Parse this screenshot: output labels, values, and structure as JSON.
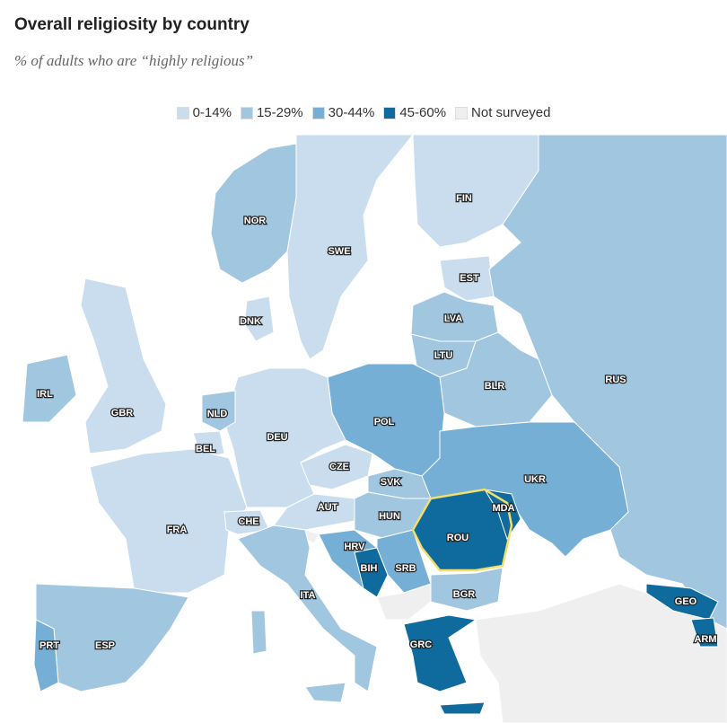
{
  "title": "Overall religiosity by country",
  "subtitle": "% of adults who are “highly religious”",
  "legend": [
    {
      "label": "0-14%",
      "color": "#c9ddee"
    },
    {
      "label": "15-29%",
      "color": "#a0c6e0"
    },
    {
      "label": "30-44%",
      "color": "#75afd5"
    },
    {
      "label": "45-60%",
      "color": "#0f6b9e"
    },
    {
      "label": "Not surveyed",
      "color": "#efefef"
    }
  ],
  "countries": [
    {
      "code": "NOR",
      "class": 1
    },
    {
      "code": "SWE",
      "class": 0
    },
    {
      "code": "FIN",
      "class": 0
    },
    {
      "code": "EST",
      "class": 0
    },
    {
      "code": "LVA",
      "class": 1
    },
    {
      "code": "LTU",
      "class": 1
    },
    {
      "code": "BLR",
      "class": 1
    },
    {
      "code": "RUS",
      "class": 1
    },
    {
      "code": "POL",
      "class": 2
    },
    {
      "code": "UKR",
      "class": 2
    },
    {
      "code": "DEU",
      "class": 0
    },
    {
      "code": "DNK",
      "class": 0
    },
    {
      "code": "NLD",
      "class": 1
    },
    {
      "code": "BEL",
      "class": 0
    },
    {
      "code": "GBR",
      "class": 0
    },
    {
      "code": "IRL",
      "class": 1
    },
    {
      "code": "FRA",
      "class": 0
    },
    {
      "code": "CHE",
      "class": 0
    },
    {
      "code": "AUT",
      "class": 0
    },
    {
      "code": "CZE",
      "class": 0
    },
    {
      "code": "SVK",
      "class": 1
    },
    {
      "code": "HUN",
      "class": 1
    },
    {
      "code": "ITA",
      "class": 1
    },
    {
      "code": "HRV",
      "class": 2
    },
    {
      "code": "BIH",
      "class": 3
    },
    {
      "code": "SRB",
      "class": 2
    },
    {
      "code": "ROU",
      "class": 3,
      "highlighted": true
    },
    {
      "code": "MDA",
      "class": 3
    },
    {
      "code": "BGR",
      "class": 1
    },
    {
      "code": "GRC",
      "class": 3
    },
    {
      "code": "ESP",
      "class": 1
    },
    {
      "code": "PRT",
      "class": 2
    },
    {
      "code": "GEO",
      "class": 3
    },
    {
      "code": "ARM",
      "class": 3
    }
  ]
}
